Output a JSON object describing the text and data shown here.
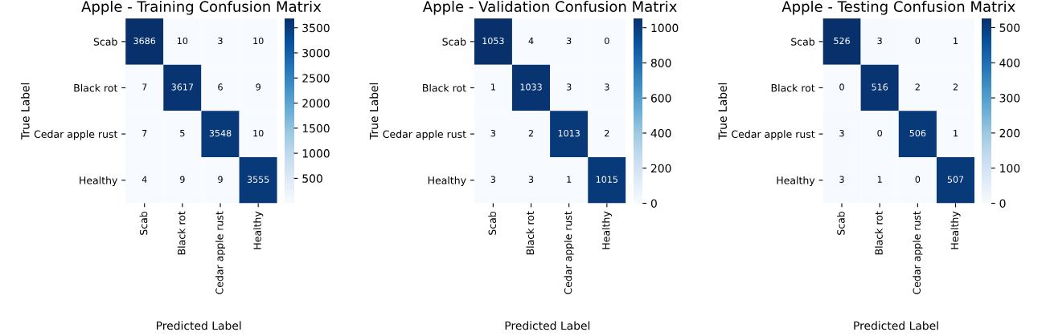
{
  "chart_data": [
    {
      "type": "heatmap",
      "title": "Apple - Training Confusion Matrix",
      "xlabel": "Predicted Label",
      "ylabel": "True Label",
      "categories": [
        "Scab",
        "Black rot",
        "Cedar apple rust",
        "Healthy"
      ],
      "y_categories": [
        "Scab",
        "Black rot",
        "Cedar apple rust",
        "Healthy"
      ],
      "cells": [
        [
          3686,
          10,
          3,
          10
        ],
        [
          7,
          3617,
          6,
          9
        ],
        [
          7,
          5,
          3548,
          10
        ],
        [
          4,
          9,
          9,
          3555
        ]
      ],
      "clim": [
        3,
        3686
      ],
      "cticks": [
        500,
        1000,
        1500,
        2000,
        2500,
        3000,
        3500
      ],
      "data_labels": true
    },
    {
      "type": "heatmap",
      "title": "Apple - Validation Confusion Matrix",
      "xlabel": "Predicted Label",
      "ylabel": "True Label",
      "categories": [
        "Scab",
        "Black rot",
        "Cedar apple rust",
        "Healthy"
      ],
      "y_categories": [
        "Scab",
        "Black rot",
        "Cedar apple rust",
        "Healthy"
      ],
      "cells": [
        [
          1053,
          4,
          3,
          0
        ],
        [
          1,
          1033,
          3,
          3
        ],
        [
          3,
          2,
          1013,
          2
        ],
        [
          3,
          3,
          1,
          1015
        ]
      ],
      "clim": [
        0,
        1053
      ],
      "cticks": [
        0,
        200,
        400,
        600,
        800,
        1000
      ],
      "data_labels": true
    },
    {
      "type": "heatmap",
      "title": "Apple - Testing Confusion Matrix",
      "xlabel": "Predicted Label",
      "ylabel": "True Label",
      "categories": [
        "Scab",
        "Black rot",
        "Cedar apple rust",
        "Healthy"
      ],
      "y_categories": [
        "Scab",
        "Black rot",
        "Cedar apple rust",
        "Healthy"
      ],
      "cells": [
        [
          526,
          3,
          0,
          1
        ],
        [
          0,
          516,
          2,
          2
        ],
        [
          3,
          0,
          506,
          1
        ],
        [
          3,
          1,
          0,
          507
        ]
      ],
      "clim": [
        0,
        526
      ],
      "cticks": [
        0,
        100,
        200,
        300,
        400,
        500
      ],
      "data_labels": true
    }
  ]
}
